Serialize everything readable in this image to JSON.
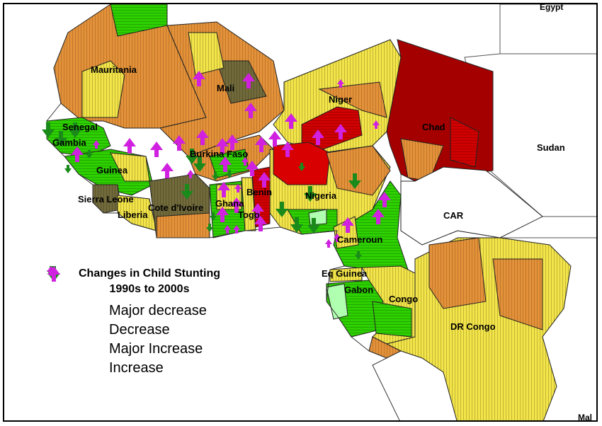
{
  "map": {
    "country_labels": [
      {
        "id": "mauritania",
        "text": "Mauritania"
      },
      {
        "id": "mali",
        "text": "Mali"
      },
      {
        "id": "niger",
        "text": "Niger"
      },
      {
        "id": "chad",
        "text": "Chad"
      },
      {
        "id": "sudan",
        "text": "Sudan"
      },
      {
        "id": "egypt",
        "text": "Egypt"
      },
      {
        "id": "senegal",
        "text": "Senegal"
      },
      {
        "id": "gambia",
        "text": "Gambia"
      },
      {
        "id": "guinea",
        "text": "Guinea"
      },
      {
        "id": "burkina-faso",
        "text": "Burkina Faso"
      },
      {
        "id": "sierra-leone",
        "text": "Sierra Leone"
      },
      {
        "id": "liberia",
        "text": "Liberia"
      },
      {
        "id": "cote-divoire",
        "text": "Cote d'Ivoire"
      },
      {
        "id": "ghana",
        "text": "Ghana"
      },
      {
        "id": "togo",
        "text": "Togo"
      },
      {
        "id": "benin",
        "text": "Benin"
      },
      {
        "id": "nigeria",
        "text": "Nigeria"
      },
      {
        "id": "cameroun",
        "text": "Cameroun"
      },
      {
        "id": "car",
        "text": "CAR"
      },
      {
        "id": "eq-guinea",
        "text": "Eq Guinea"
      },
      {
        "id": "gabon",
        "text": "Gabon"
      },
      {
        "id": "congo",
        "text": "Congo"
      },
      {
        "id": "dr-congo",
        "text": "DR Congo"
      },
      {
        "id": "malawi-partial",
        "text": "Mal"
      }
    ],
    "colors": {
      "red": "#c00000",
      "dark_red": "#a00000",
      "orange": "#e08a2e",
      "yellow": "#f0e040",
      "green": "#22c800",
      "light_green": "#a8f0a0",
      "dark_olive": "#6f6a3a",
      "arrow_green": "#1a8a1a",
      "arrow_magenta": "#d020e0"
    }
  },
  "legend": {
    "title_line1": "Changes in Child Stunting",
    "title_line2": "1990s to 2000s",
    "items": [
      {
        "label": "Major decrease",
        "icon": "arrow-down-large-icon",
        "color": "#1a8a1a"
      },
      {
        "label": "Decrease",
        "icon": "arrow-down-small-icon",
        "color": "#1a8a1a"
      },
      {
        "label": "Major Increase",
        "icon": "arrow-up-large-icon",
        "color": "#d020e0"
      },
      {
        "label": "Increase",
        "icon": "arrow-up-small-icon",
        "color": "#d020e0"
      }
    ]
  }
}
